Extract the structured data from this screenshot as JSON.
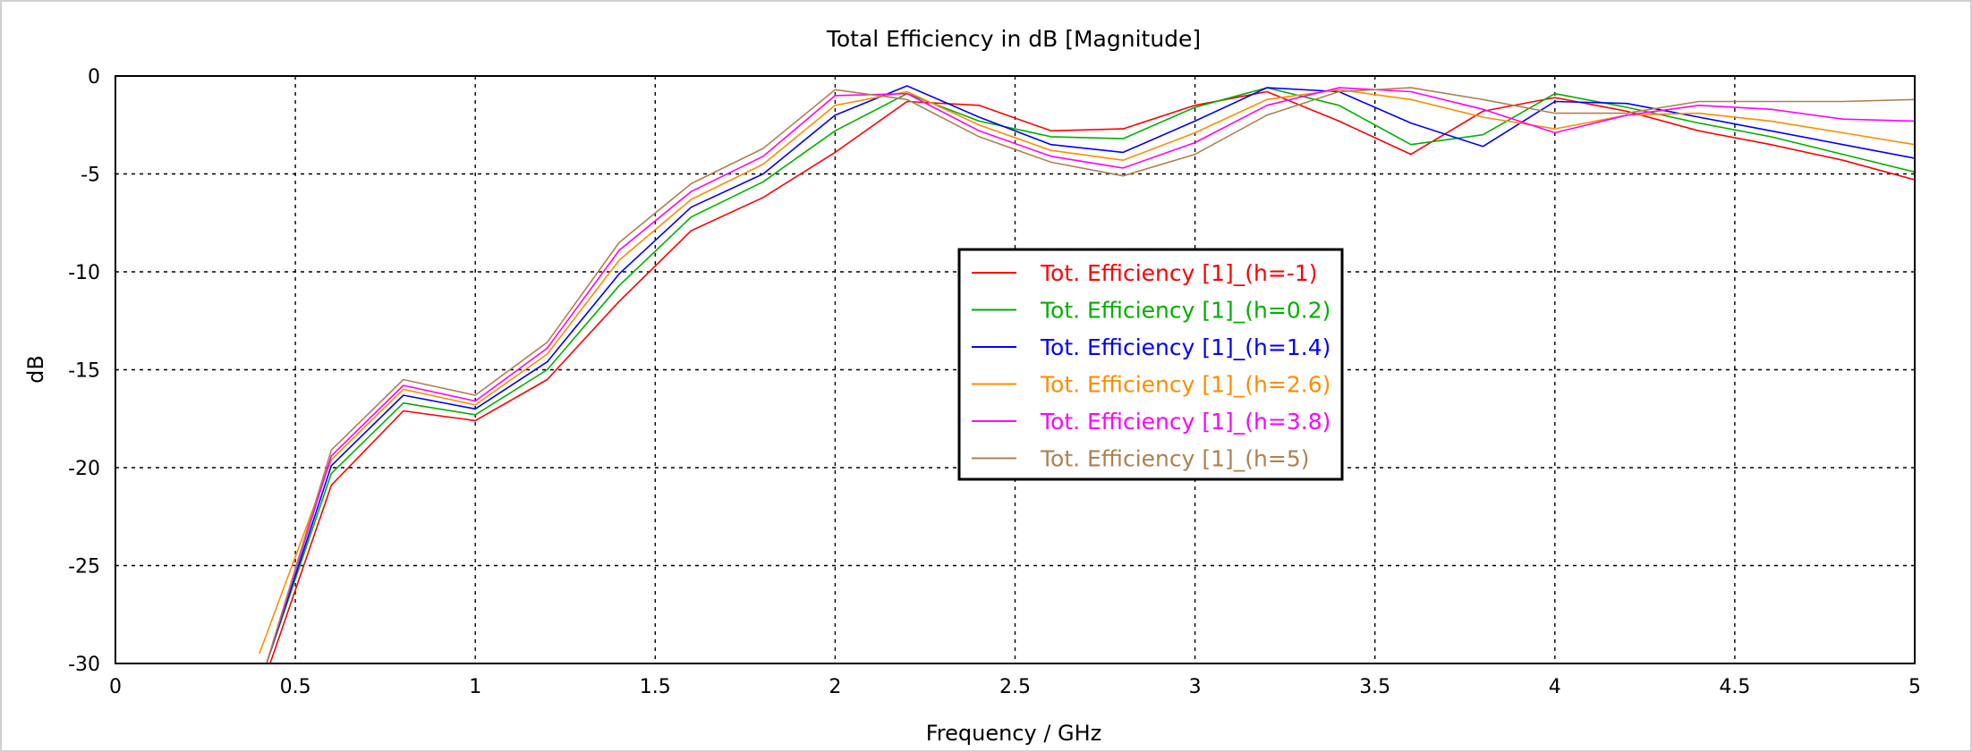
{
  "chart_data": {
    "type": "line",
    "title": "Total Efficiency in dB [Magnitude]",
    "xlabel": "Frequency / GHz",
    "ylabel": "dB",
    "xlim": [
      0,
      5
    ],
    "ylim": [
      -30,
      0
    ],
    "grid": true,
    "legend_position": "center",
    "x_ticks": [
      {
        "value": 0,
        "label": "0"
      },
      {
        "value": 0.5,
        "label": "0.5"
      },
      {
        "value": 1,
        "label": "1"
      },
      {
        "value": 1.5,
        "label": "1.5"
      },
      {
        "value": 2,
        "label": "2"
      },
      {
        "value": 2.5,
        "label": "2.5"
      },
      {
        "value": 3,
        "label": "3"
      },
      {
        "value": 3.5,
        "label": "3.5"
      },
      {
        "value": 4,
        "label": "4"
      },
      {
        "value": 4.5,
        "label": "4.5"
      },
      {
        "value": 5,
        "label": "5"
      }
    ],
    "y_ticks": [
      {
        "value": 0,
        "label": "0"
      },
      {
        "value": -5,
        "label": "-5"
      },
      {
        "value": -10,
        "label": "-10"
      },
      {
        "value": -15,
        "label": "-15"
      },
      {
        "value": -20,
        "label": "-20"
      },
      {
        "value": -25,
        "label": "-25"
      },
      {
        "value": -30,
        "label": "-30"
      }
    ],
    "series": [
      {
        "name": "Tot. Efficiency [1]_(h=-1)",
        "color": "#ff0000",
        "x": [
          0.43,
          0.6,
          0.8,
          1.0,
          1.2,
          1.4,
          1.6,
          1.8,
          2.0,
          2.2,
          2.4,
          2.6,
          2.8,
          3.0,
          3.2,
          3.4,
          3.6,
          3.8,
          4.0,
          4.2,
          4.4,
          4.6,
          4.8,
          5.0
        ],
        "y": [
          -30,
          -20.9,
          -17.1,
          -17.6,
          -15.5,
          -11.5,
          -7.9,
          -6.2,
          -3.9,
          -1.3,
          -1.5,
          -2.8,
          -2.7,
          -1.5,
          -0.8,
          -2.3,
          -4.0,
          -1.8,
          -1.1,
          -1.8,
          -2.8,
          -3.5,
          -4.3,
          -5.3
        ]
      },
      {
        "name": "Tot. Efficiency [1]_(h=0.2)",
        "color": "#00b000",
        "x": [
          0.42,
          0.6,
          0.8,
          1.0,
          1.2,
          1.4,
          1.6,
          1.8,
          2.0,
          2.2,
          2.4,
          2.6,
          2.8,
          3.0,
          3.2,
          3.4,
          3.6,
          3.8,
          4.0,
          4.2,
          4.4,
          4.6,
          4.8,
          5.0
        ],
        "y": [
          -30,
          -20.3,
          -16.7,
          -17.3,
          -15.0,
          -10.7,
          -7.2,
          -5.4,
          -2.8,
          -0.9,
          -2.3,
          -3.1,
          -3.2,
          -1.6,
          -0.6,
          -1.5,
          -3.5,
          -3.0,
          -0.9,
          -1.6,
          -2.4,
          -3.1,
          -4.0,
          -4.9
        ]
      },
      {
        "name": "Tot. Efficiency [1]_(h=1.4)",
        "color": "#0000ff",
        "x": [
          0.42,
          0.6,
          0.8,
          1.0,
          1.2,
          1.4,
          1.6,
          1.8,
          2.0,
          2.2,
          2.4,
          2.6,
          2.8,
          3.0,
          3.2,
          3.4,
          3.6,
          3.8,
          4.0,
          4.2,
          4.4,
          4.6,
          4.8,
          5.0
        ],
        "y": [
          -30,
          -19.9,
          -16.3,
          -17.0,
          -14.6,
          -10.1,
          -6.7,
          -5.0,
          -2.0,
          -0.5,
          -2.1,
          -3.5,
          -3.9,
          -2.3,
          -0.6,
          -0.8,
          -2.4,
          -3.6,
          -1.3,
          -1.4,
          -2.1,
          -2.8,
          -3.5,
          -4.2
        ]
      },
      {
        "name": "Tot. Efficiency [1]_(h=2.6)",
        "color": "#ff8c00",
        "x": [
          0.4,
          0.6,
          0.8,
          1.0,
          1.2,
          1.4,
          1.6,
          1.8,
          2.0,
          2.2,
          2.4,
          2.6,
          2.8,
          3.0,
          3.2,
          3.4,
          3.6,
          3.8,
          4.0,
          4.2,
          4.4,
          4.6,
          4.8,
          5.0
        ],
        "y": [
          -29.5,
          -19.6,
          -16.0,
          -16.8,
          -14.2,
          -9.4,
          -6.3,
          -4.5,
          -1.5,
          -0.8,
          -2.5,
          -3.8,
          -4.3,
          -2.9,
          -1.2,
          -0.7,
          -1.2,
          -2.1,
          -2.7,
          -2.0,
          -1.9,
          -2.3,
          -2.9,
          -3.5
        ]
      },
      {
        "name": "Tot. Efficiency [1]_(h=3.8)",
        "color": "#ff00ff",
        "x": [
          0.42,
          0.6,
          0.8,
          1.0,
          1.2,
          1.4,
          1.6,
          1.8,
          2.0,
          2.2,
          2.4,
          2.6,
          2.8,
          3.0,
          3.2,
          3.4,
          3.6,
          3.8,
          4.0,
          4.2,
          4.4,
          4.6,
          4.8,
          5.0
        ],
        "y": [
          -30,
          -19.4,
          -15.8,
          -16.6,
          -13.9,
          -8.9,
          -5.9,
          -4.1,
          -1.0,
          -0.9,
          -2.8,
          -4.1,
          -4.7,
          -3.4,
          -1.5,
          -0.6,
          -0.8,
          -1.7,
          -2.9,
          -2.0,
          -1.5,
          -1.7,
          -2.2,
          -2.3
        ]
      },
      {
        "name": "Tot. Efficiency [1]_(h=5)",
        "color": "#b08050",
        "x": [
          0.42,
          0.6,
          0.8,
          1.0,
          1.2,
          1.4,
          1.6,
          1.8,
          2.0,
          2.2,
          2.4,
          2.6,
          2.8,
          3.0,
          3.2,
          3.4,
          3.6,
          3.8,
          4.0,
          4.2,
          4.4,
          4.6,
          4.8,
          5.0
        ],
        "y": [
          -30,
          -19.1,
          -15.5,
          -16.3,
          -13.6,
          -8.5,
          -5.5,
          -3.7,
          -0.7,
          -1.2,
          -3.1,
          -4.4,
          -5.1,
          -4.0,
          -2.0,
          -0.8,
          -0.6,
          -1.2,
          -1.9,
          -1.9,
          -1.3,
          -1.3,
          -1.3,
          -1.2
        ]
      }
    ]
  }
}
